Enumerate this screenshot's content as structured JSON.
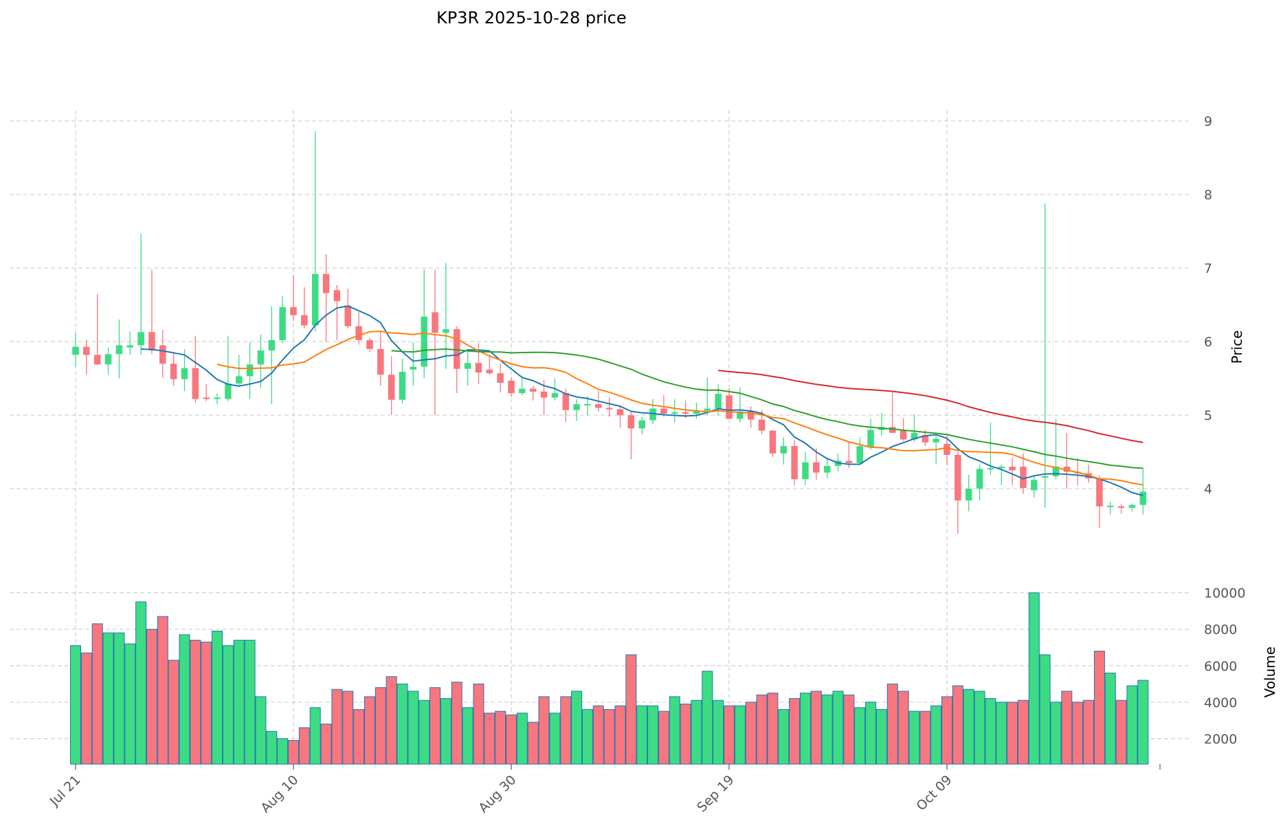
{
  "chart_data": {
    "type": "candlestick",
    "title": "KP3R  2025-10-28  price",
    "price_axis": {
      "label": "Price",
      "ylim": [
        2.75,
        9.15
      ],
      "ticks": [
        4,
        5,
        6,
        7,
        8,
        9
      ]
    },
    "volume_axis": {
      "label": "Volume",
      "ylim": [
        600,
        10100
      ],
      "ticks": [
        2000,
        4000,
        6000,
        8000,
        10000
      ]
    },
    "x_ticks": [
      {
        "label": "Jul 21",
        "index": 0
      },
      {
        "label": "Aug 10",
        "index": 20
      },
      {
        "label": "Aug 30",
        "index": 40
      },
      {
        "label": "Sep 19",
        "index": 60
      },
      {
        "label": "Oct 09",
        "index": 80
      }
    ],
    "colors": {
      "up": "#3ddc84",
      "down": "#f8767d",
      "ma7": "#1f77b4",
      "ma14": "#ff7f0e",
      "ma30": "#2ca02c",
      "ma60": "#d62728",
      "volume_edge": "#1f77b4"
    },
    "candles": [
      {
        "date": "Jul 21",
        "o": 5.82,
        "h": 6.12,
        "l": 5.66,
        "c": 5.93,
        "v": 7100
      },
      {
        "date": "Jul 22",
        "o": 5.93,
        "h": 6.02,
        "l": 5.55,
        "c": 5.82,
        "v": 6700
      },
      {
        "date": "Jul 23",
        "o": 5.82,
        "h": 6.65,
        "l": 5.68,
        "c": 5.69,
        "v": 8300
      },
      {
        "date": "Jul 24",
        "o": 5.69,
        "h": 5.92,
        "l": 5.55,
        "c": 5.83,
        "v": 7800
      },
      {
        "date": "Jul 25",
        "o": 5.83,
        "h": 6.3,
        "l": 5.5,
        "c": 5.95,
        "v": 7800
      },
      {
        "date": "Jul 26",
        "o": 5.92,
        "h": 6.14,
        "l": 5.82,
        "c": 5.95,
        "v": 7200
      },
      {
        "date": "Jul 27",
        "o": 5.95,
        "h": 7.47,
        "l": 5.82,
        "c": 6.13,
        "v": 9500
      },
      {
        "date": "Jul 28",
        "o": 6.13,
        "h": 6.98,
        "l": 5.83,
        "c": 5.88,
        "v": 8000
      },
      {
        "date": "Jul 29",
        "o": 5.95,
        "h": 6.16,
        "l": 5.51,
        "c": 5.7,
        "v": 8700
      },
      {
        "date": "Jul 30",
        "o": 5.7,
        "h": 5.85,
        "l": 5.4,
        "c": 5.49,
        "v": 6300
      },
      {
        "date": "Jul 31",
        "o": 5.49,
        "h": 5.9,
        "l": 5.33,
        "c": 5.64,
        "v": 7700
      },
      {
        "date": "Aug 1",
        "o": 5.64,
        "h": 6.08,
        "l": 5.17,
        "c": 5.22,
        "v": 7400
      },
      {
        "date": "Aug 2",
        "o": 5.24,
        "h": 5.42,
        "l": 5.19,
        "c": 5.22,
        "v": 7300
      },
      {
        "date": "Aug 3",
        "o": 5.22,
        "h": 5.3,
        "l": 5.15,
        "c": 5.24,
        "v": 7900
      },
      {
        "date": "Aug 4",
        "o": 5.22,
        "h": 6.08,
        "l": 5.19,
        "c": 5.43,
        "v": 7100
      },
      {
        "date": "Aug 5",
        "o": 5.43,
        "h": 5.82,
        "l": 5.39,
        "c": 5.53,
        "v": 7400
      },
      {
        "date": "Aug 6",
        "o": 5.53,
        "h": 5.99,
        "l": 5.22,
        "c": 5.69,
        "v": 7400
      },
      {
        "date": "Aug 7",
        "o": 5.69,
        "h": 6.1,
        "l": 5.37,
        "c": 5.88,
        "v": 4300
      },
      {
        "date": "Aug 8",
        "o": 5.88,
        "h": 6.48,
        "l": 5.15,
        "c": 6.02,
        "v": 2400
      },
      {
        "date": "Aug 9",
        "o": 6.02,
        "h": 6.62,
        "l": 5.98,
        "c": 6.47,
        "v": 2000
      },
      {
        "date": "Aug 10",
        "o": 6.47,
        "h": 6.9,
        "l": 6.28,
        "c": 6.36,
        "v": 1900
      },
      {
        "date": "Aug 11",
        "o": 6.36,
        "h": 6.74,
        "l": 6.18,
        "c": 6.22,
        "v": 2600
      },
      {
        "date": "Aug 12",
        "o": 6.22,
        "h": 8.86,
        "l": 6.14,
        "c": 6.92,
        "v": 3700
      },
      {
        "date": "Aug 13",
        "o": 6.92,
        "h": 7.19,
        "l": 6.0,
        "c": 6.66,
        "v": 2800
      },
      {
        "date": "Aug 14",
        "o": 6.7,
        "h": 6.77,
        "l": 6.02,
        "c": 6.55,
        "v": 4700
      },
      {
        "date": "Aug 15",
        "o": 6.49,
        "h": 6.72,
        "l": 6.18,
        "c": 6.21,
        "v": 4600
      },
      {
        "date": "Aug 16",
        "o": 6.21,
        "h": 6.4,
        "l": 5.96,
        "c": 6.02,
        "v": 3600
      },
      {
        "date": "Aug 17",
        "o": 6.02,
        "h": 6.05,
        "l": 5.86,
        "c": 5.9,
        "v": 4300
      },
      {
        "date": "Aug 18",
        "o": 5.9,
        "h": 6.14,
        "l": 5.4,
        "c": 5.55,
        "v": 4800
      },
      {
        "date": "Aug 19",
        "o": 5.55,
        "h": 5.8,
        "l": 5.01,
        "c": 5.21,
        "v": 5400
      },
      {
        "date": "Aug 20",
        "o": 5.21,
        "h": 5.77,
        "l": 5.16,
        "c": 5.59,
        "v": 5000
      },
      {
        "date": "Aug 21",
        "o": 5.62,
        "h": 5.99,
        "l": 5.4,
        "c": 5.66,
        "v": 4600
      },
      {
        "date": "Aug 22",
        "o": 5.66,
        "h": 6.98,
        "l": 5.5,
        "c": 6.34,
        "v": 4100
      },
      {
        "date": "Aug 23",
        "o": 6.4,
        "h": 6.98,
        "l": 5.0,
        "c": 6.12,
        "v": 4800
      },
      {
        "date": "Aug 24",
        "o": 6.12,
        "h": 7.07,
        "l": 5.63,
        "c": 6.17,
        "v": 4200
      },
      {
        "date": "Aug 25",
        "o": 6.17,
        "h": 6.21,
        "l": 5.3,
        "c": 5.63,
        "v": 5100
      },
      {
        "date": "Aug 26",
        "o": 5.63,
        "h": 5.9,
        "l": 5.4,
        "c": 5.71,
        "v": 3700
      },
      {
        "date": "Aug 27",
        "o": 5.71,
        "h": 5.98,
        "l": 5.42,
        "c": 5.58,
        "v": 5000
      },
      {
        "date": "Aug 28",
        "o": 5.62,
        "h": 5.82,
        "l": 5.55,
        "c": 5.57,
        "v": 3400
      },
      {
        "date": "Aug 29",
        "o": 5.57,
        "h": 5.7,
        "l": 5.31,
        "c": 5.44,
        "v": 3500
      },
      {
        "date": "Aug 30",
        "o": 5.47,
        "h": 5.52,
        "l": 5.25,
        "c": 5.3,
        "v": 3300
      },
      {
        "date": "Aug 31",
        "o": 5.3,
        "h": 5.52,
        "l": 5.27,
        "c": 5.36,
        "v": 3400
      },
      {
        "date": "Sep 1",
        "o": 5.36,
        "h": 5.4,
        "l": 5.2,
        "c": 5.32,
        "v": 2900
      },
      {
        "date": "Sep 2",
        "o": 5.32,
        "h": 5.48,
        "l": 5.0,
        "c": 5.24,
        "v": 4300
      },
      {
        "date": "Sep 3",
        "o": 5.24,
        "h": 5.5,
        "l": 5.2,
        "c": 5.3,
        "v": 3400
      },
      {
        "date": "Sep 4",
        "o": 5.3,
        "h": 5.36,
        "l": 4.91,
        "c": 5.07,
        "v": 4300
      },
      {
        "date": "Sep 5",
        "o": 5.07,
        "h": 5.22,
        "l": 4.92,
        "c": 5.15,
        "v": 4600
      },
      {
        "date": "Sep 6",
        "o": 5.15,
        "h": 5.26,
        "l": 5.0,
        "c": 5.15,
        "v": 3600
      },
      {
        "date": "Sep 7",
        "o": 5.15,
        "h": 5.33,
        "l": 5.05,
        "c": 5.1,
        "v": 3800
      },
      {
        "date": "Sep 8",
        "o": 5.1,
        "h": 5.24,
        "l": 4.98,
        "c": 5.08,
        "v": 3600
      },
      {
        "date": "Sep 9",
        "o": 5.08,
        "h": 5.14,
        "l": 4.83,
        "c": 5.0,
        "v": 3800
      },
      {
        "date": "Sep 10",
        "o": 5.0,
        "h": 5.06,
        "l": 4.4,
        "c": 4.82,
        "v": 6600
      },
      {
        "date": "Sep 11",
        "o": 4.82,
        "h": 4.98,
        "l": 4.74,
        "c": 4.93,
        "v": 3800
      },
      {
        "date": "Sep 12",
        "o": 4.93,
        "h": 5.22,
        "l": 4.88,
        "c": 5.09,
        "v": 3800
      },
      {
        "date": "Sep 13",
        "o": 5.09,
        "h": 5.27,
        "l": 4.98,
        "c": 5.02,
        "v": 3500
      },
      {
        "date": "Sep 14",
        "o": 5.02,
        "h": 5.22,
        "l": 4.9,
        "c": 5.04,
        "v": 4300
      },
      {
        "date": "Sep 15",
        "o": 5.04,
        "h": 5.2,
        "l": 4.96,
        "c": 5.02,
        "v": 3900
      },
      {
        "date": "Sep 16",
        "o": 5.02,
        "h": 5.17,
        "l": 4.95,
        "c": 5.06,
        "v": 4100
      },
      {
        "date": "Sep 17",
        "o": 5.06,
        "h": 5.51,
        "l": 5.0,
        "c": 5.09,
        "v": 5700
      },
      {
        "date": "Sep 18",
        "o": 5.09,
        "h": 5.42,
        "l": 5.0,
        "c": 5.29,
        "v": 4100
      },
      {
        "date": "Sep 19",
        "o": 5.27,
        "h": 5.36,
        "l": 4.97,
        "c": 4.95,
        "v": 3800
      },
      {
        "date": "Sep 20",
        "o": 4.95,
        "h": 5.38,
        "l": 4.9,
        "c": 5.05,
        "v": 3800
      },
      {
        "date": "Sep 21",
        "o": 5.06,
        "h": 5.12,
        "l": 4.83,
        "c": 4.94,
        "v": 4000
      },
      {
        "date": "Sep 22",
        "o": 4.94,
        "h": 5.07,
        "l": 4.74,
        "c": 4.79,
        "v": 4400
      },
      {
        "date": "Sep 23",
        "o": 4.79,
        "h": 4.8,
        "l": 4.43,
        "c": 4.48,
        "v": 4500
      },
      {
        "date": "Sep 24",
        "o": 4.48,
        "h": 4.7,
        "l": 4.33,
        "c": 4.58,
        "v": 3600
      },
      {
        "date": "Sep 25",
        "o": 4.58,
        "h": 4.66,
        "l": 4.05,
        "c": 4.13,
        "v": 4200
      },
      {
        "date": "Sep 26",
        "o": 4.13,
        "h": 4.5,
        "l": 4.05,
        "c": 4.36,
        "v": 4500
      },
      {
        "date": "Sep 27",
        "o": 4.36,
        "h": 4.55,
        "l": 4.12,
        "c": 4.22,
        "v": 4600
      },
      {
        "date": "Sep 28",
        "o": 4.22,
        "h": 4.4,
        "l": 4.15,
        "c": 4.31,
        "v": 4400
      },
      {
        "date": "Sep 29",
        "o": 4.31,
        "h": 4.48,
        "l": 4.24,
        "c": 4.38,
        "v": 4600
      },
      {
        "date": "Sep 30",
        "o": 4.38,
        "h": 4.64,
        "l": 4.28,
        "c": 4.35,
        "v": 4400
      },
      {
        "date": "Oct 1",
        "o": 4.35,
        "h": 4.7,
        "l": 4.33,
        "c": 4.58,
        "v": 3700
      },
      {
        "date": "Oct 2",
        "o": 4.56,
        "h": 4.95,
        "l": 4.53,
        "c": 4.8,
        "v": 4000
      },
      {
        "date": "Oct 3",
        "o": 4.8,
        "h": 5.03,
        "l": 4.72,
        "c": 4.84,
        "v": 3600
      },
      {
        "date": "Oct 4",
        "o": 4.84,
        "h": 5.31,
        "l": 4.77,
        "c": 4.76,
        "v": 5000
      },
      {
        "date": "Oct 5",
        "o": 4.8,
        "h": 4.96,
        "l": 4.65,
        "c": 4.67,
        "v": 4600
      },
      {
        "date": "Oct 6",
        "o": 4.67,
        "h": 5.01,
        "l": 4.64,
        "c": 4.76,
        "v": 3500
      },
      {
        "date": "Oct 7",
        "o": 4.73,
        "h": 4.8,
        "l": 4.58,
        "c": 4.63,
        "v": 3500
      },
      {
        "date": "Oct 8",
        "o": 4.63,
        "h": 4.72,
        "l": 4.33,
        "c": 4.68,
        "v": 3800
      },
      {
        "date": "Oct 9",
        "o": 4.61,
        "h": 4.72,
        "l": 4.32,
        "c": 4.46,
        "v": 4300
      },
      {
        "date": "Oct 10",
        "o": 4.46,
        "h": 4.5,
        "l": 3.39,
        "c": 3.84,
        "v": 4900
      },
      {
        "date": "Oct 11",
        "o": 3.84,
        "h": 4.19,
        "l": 3.69,
        "c": 4.0,
        "v": 4700
      },
      {
        "date": "Oct 12",
        "o": 4.0,
        "h": 4.33,
        "l": 3.84,
        "c": 4.27,
        "v": 4600
      },
      {
        "date": "Oct 13",
        "o": 4.27,
        "h": 4.9,
        "l": 4.19,
        "c": 4.28,
        "v": 4200
      },
      {
        "date": "Oct 14",
        "o": 4.28,
        "h": 4.33,
        "l": 4.05,
        "c": 4.3,
        "v": 4000
      },
      {
        "date": "Oct 15",
        "o": 4.3,
        "h": 4.42,
        "l": 4.05,
        "c": 4.25,
        "v": 4000
      },
      {
        "date": "Oct 16",
        "o": 4.3,
        "h": 4.48,
        "l": 3.93,
        "c": 4.01,
        "v": 4100
      },
      {
        "date": "Oct 17",
        "o": 3.98,
        "h": 4.18,
        "l": 3.88,
        "c": 4.12,
        "v": 10000
      },
      {
        "date": "Oct 18",
        "o": 4.15,
        "h": 7.88,
        "l": 3.74,
        "c": 4.17,
        "v": 6600
      },
      {
        "date": "Oct 19",
        "o": 4.17,
        "h": 4.95,
        "l": 4.13,
        "c": 4.3,
        "v": 4000
      },
      {
        "date": "Oct 20",
        "o": 4.3,
        "h": 4.76,
        "l": 4.0,
        "c": 4.23,
        "v": 4600
      },
      {
        "date": "Oct 21",
        "o": 4.23,
        "h": 4.42,
        "l": 4.05,
        "c": 4.21,
        "v": 4000
      },
      {
        "date": "Oct 22",
        "o": 4.21,
        "h": 4.33,
        "l": 4.08,
        "c": 4.14,
        "v": 4100
      },
      {
        "date": "Oct 23",
        "o": 4.14,
        "h": 4.18,
        "l": 3.47,
        "c": 3.76,
        "v": 6800
      },
      {
        "date": "Oct 24",
        "o": 3.76,
        "h": 3.82,
        "l": 3.65,
        "c": 3.77,
        "v": 5600
      },
      {
        "date": "Oct 25",
        "o": 3.76,
        "h": 3.79,
        "l": 3.66,
        "c": 3.74,
        "v": 4100
      },
      {
        "date": "Oct 26",
        "o": 3.74,
        "h": 3.8,
        "l": 3.69,
        "c": 3.78,
        "v": 4900
      },
      {
        "date": "Oct 27",
        "o": 3.78,
        "h": 4.28,
        "l": 3.65,
        "c": 3.96,
        "v": 5200
      }
    ]
  }
}
